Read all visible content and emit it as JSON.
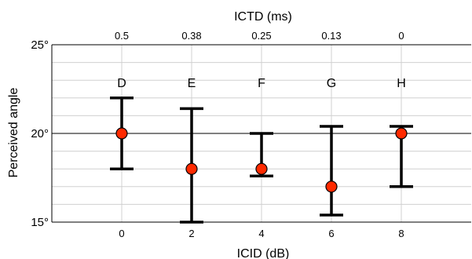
{
  "chart_data": {
    "type": "scatter",
    "title": "",
    "xlabel": "ICID (dB)",
    "x2label": "ICTD (ms)",
    "ylabel": "Perceived angle",
    "x": [
      0,
      2,
      4,
      6,
      8
    ],
    "x_tick_labels": [
      "0",
      "2",
      "4",
      "6",
      "8"
    ],
    "x2_tick_labels": [
      "0.5",
      "0.38",
      "0.25",
      "0.13",
      "0"
    ],
    "point_labels": [
      "D",
      "E",
      "F",
      "G",
      "H"
    ],
    "y_ticks": [
      15,
      20,
      25
    ],
    "y_tick_labels": [
      "15°",
      "20°",
      "25°"
    ],
    "xlim": [
      -2,
      10
    ],
    "ylim": [
      15,
      25
    ],
    "reference_line_y": 20,
    "grid": true,
    "marker_color": "#ff2a00",
    "series": [
      {
        "values": [
          20.0,
          18.0,
          18.0,
          17.0,
          20.0
        ],
        "error_low": [
          18.0,
          15.0,
          17.6,
          15.4,
          17.0
        ],
        "error_high": [
          22.0,
          21.4,
          20.0,
          20.4,
          20.4
        ]
      }
    ]
  }
}
